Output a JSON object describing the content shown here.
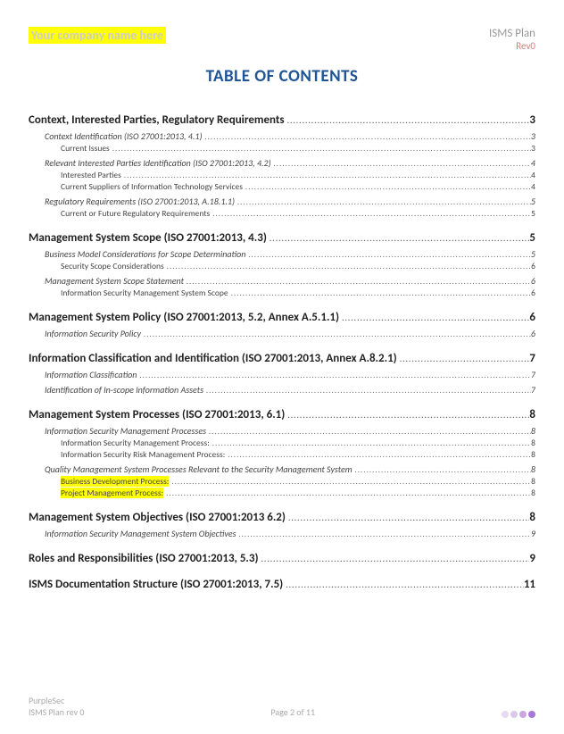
{
  "header": {
    "company_name": "Your company name here",
    "plan_title": "ISMS Plan",
    "revision": "Rev0"
  },
  "title": "TABLE OF CONTENTS",
  "toc": [
    {
      "level": 1,
      "label": "Context, Interested Parties, Regulatory Requirements",
      "page": "3"
    },
    {
      "level": 2,
      "label": "Context Identification (ISO 27001:2013, 4.1)",
      "page": "3"
    },
    {
      "level": 3,
      "label": "Current Issues",
      "page": "3"
    },
    {
      "level": 2,
      "label": "Relevant Interested Parties Identification (ISO 27001:2013, 4.2)",
      "page": "4"
    },
    {
      "level": 3,
      "label": "Interested Parties",
      "page": "4"
    },
    {
      "level": 3,
      "label": "Current Suppliers of Information Technology Services",
      "page": "4"
    },
    {
      "level": 2,
      "label": "Regulatory Requirements (ISO 27001:2013, A.18.1.1)",
      "page": "5"
    },
    {
      "level": 3,
      "label": "Current or Future Regulatory Requirements",
      "page": "5"
    },
    {
      "level": 1,
      "label": "Management System Scope (ISO 27001:2013, 4.3)",
      "page": "5"
    },
    {
      "level": 2,
      "label": "Business Model Considerations for Scope Determination",
      "page": "5"
    },
    {
      "level": 3,
      "label": "Security Scope Considerations",
      "page": "6"
    },
    {
      "level": 2,
      "label": "Management System Scope Statement",
      "page": "6"
    },
    {
      "level": 3,
      "label": "Information Security Management System Scope",
      "page": "6"
    },
    {
      "level": 1,
      "label": "Management System Policy (ISO 27001:2013, 5.2, Annex A.5.1.1)",
      "page": "6"
    },
    {
      "level": 2,
      "label": "Information Security Policy",
      "page": "6"
    },
    {
      "level": 1,
      "label": "Information Classification and Identification (ISO 27001:2013, Annex A.8.2.1)",
      "page": "7"
    },
    {
      "level": 2,
      "label": "Information Classification",
      "page": "7"
    },
    {
      "level": 2,
      "label": "Identification of In-scope Information Assets",
      "page": "7"
    },
    {
      "level": 1,
      "label": "Management System Processes (ISO 27001:2013, 6.1)",
      "page": "8"
    },
    {
      "level": 2,
      "label": "Information Security Management Processes",
      "page": "8"
    },
    {
      "level": 3,
      "label": "Information Security Management Process:",
      "page": "8"
    },
    {
      "level": 3,
      "label": "Information Security Risk Management Process:",
      "page": "8"
    },
    {
      "level": 2,
      "label": "Quality Management System Processes Relevant to the Security Management System",
      "page": "8"
    },
    {
      "level": 3,
      "label": "Business Development Process:",
      "page": "8",
      "highlight": true
    },
    {
      "level": 3,
      "label": "Project Management Process:",
      "page": "8",
      "highlight": true
    },
    {
      "level": 1,
      "label": "Management System Objectives (ISO 27001:2013 6.2)",
      "page": "8"
    },
    {
      "level": 2,
      "label": "Information Security Management System Objectives",
      "page": "9"
    },
    {
      "level": 1,
      "label": "Roles and Responsibilities (ISO 27001:2013, 5.3)",
      "page": "9"
    },
    {
      "level": 1,
      "label": "ISMS Documentation Structure (ISO 27001:2013, 7.5)",
      "page": "11"
    }
  ],
  "footer": {
    "brand": "PurpleSec",
    "doc_rev": "ISMS Plan rev 0",
    "page_label": "Page 2 of 11",
    "dot_colors": [
      "#e8d8f0",
      "#ddc8ec",
      "#c9a8e0",
      "#a878d8"
    ]
  }
}
